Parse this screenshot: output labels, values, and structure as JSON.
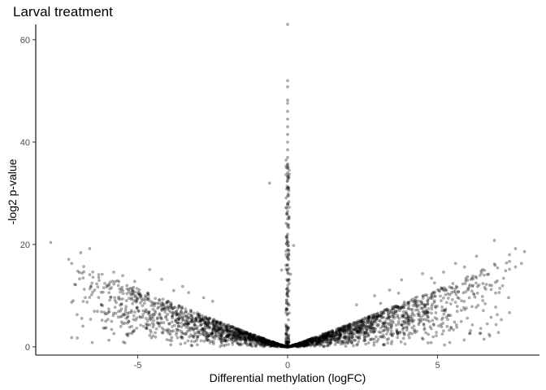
{
  "chart_data": {
    "type": "scatter",
    "title": "Larval treatment",
    "xlabel": "Differential methylation (logFC)",
    "ylabel": "-log2 p-value",
    "xlim": [
      -8.4,
      8.4
    ],
    "ylim": [
      -1.6,
      63
    ],
    "x_ticks": [
      -5,
      0,
      5
    ],
    "x_tick_labels": [
      "-5",
      "0",
      "5"
    ],
    "y_ticks": [
      0,
      20,
      40,
      60
    ],
    "y_tick_labels": [
      "0",
      "20",
      "40",
      "60"
    ],
    "grid": false,
    "legend": "none",
    "point_color": "#000000",
    "point_opacity": 0.3,
    "series": [
      {
        "points": [
          [
            0.0,
            63.0
          ],
          [
            0.0,
            52.0
          ],
          [
            0.0,
            50.8
          ],
          [
            0.0,
            48.2
          ],
          [
            0.0,
            47.6
          ],
          [
            0.0,
            46.0
          ],
          [
            0.0,
            44.5
          ],
          [
            0.0,
            43.0
          ],
          [
            0.0,
            41.5
          ],
          [
            0.0,
            40.0
          ],
          [
            0.0,
            38.5
          ],
          [
            0.0,
            37.0
          ],
          [
            0.0,
            35.5
          ],
          [
            0.0,
            34.0
          ],
          [
            0.0,
            32.5
          ],
          [
            0.0,
            31.0
          ],
          [
            0.0,
            29.5
          ],
          [
            0.0,
            28.0
          ],
          [
            0.0,
            26.5
          ],
          [
            0.0,
            25.0
          ],
          [
            0.0,
            23.5
          ],
          [
            0.0,
            22.0
          ],
          [
            0.0,
            20.5
          ],
          [
            0.0,
            19.0
          ],
          [
            0.0,
            17.5
          ],
          [
            0.0,
            16.0
          ],
          [
            0.0,
            14.5
          ],
          [
            0.0,
            13.0
          ],
          [
            0.0,
            11.5
          ],
          [
            0.0,
            10.0
          ],
          [
            -0.6,
            32.0
          ],
          [
            0.2,
            19.8
          ],
          [
            -0.2,
            15.0
          ],
          [
            0.1,
            14.2
          ],
          [
            -7.9,
            20.4
          ],
          [
            -6.6,
            19.2
          ],
          [
            -6.9,
            18.4
          ],
          [
            -7.3,
            17.1
          ],
          [
            -7.2,
            16.3
          ],
          [
            -6.8,
            15.7
          ],
          [
            -7.0,
            14.8
          ],
          [
            -6.3,
            14.1
          ],
          [
            -5.8,
            14.6
          ],
          [
            -5.5,
            13.9
          ],
          [
            -4.6,
            15.1
          ],
          [
            -5.1,
            12.8
          ],
          [
            -6.1,
            12.4
          ],
          [
            -7.1,
            12.2
          ],
          [
            -4.2,
            13.2
          ],
          [
            -3.8,
            11.0
          ],
          [
            -3.5,
            11.8
          ],
          [
            -3.3,
            10.6
          ],
          [
            -5.6,
            11.3
          ],
          [
            -4.9,
            10.1
          ],
          [
            -2.8,
            9.6
          ],
          [
            -2.5,
            8.9
          ],
          [
            -6.5,
            10.7
          ],
          [
            -5.9,
            9.7
          ],
          [
            6.9,
            20.8
          ],
          [
            7.6,
            19.2
          ],
          [
            7.9,
            18.6
          ],
          [
            7.4,
            18.0
          ],
          [
            6.3,
            17.7
          ],
          [
            7.8,
            16.3
          ],
          [
            6.9,
            16.2
          ],
          [
            7.3,
            16.4
          ],
          [
            5.6,
            16.3
          ],
          [
            5.9,
            15.6
          ],
          [
            6.5,
            15.1
          ],
          [
            7.6,
            15.6
          ],
          [
            5.2,
            14.6
          ],
          [
            4.5,
            14.3
          ],
          [
            4.8,
            13.4
          ],
          [
            3.8,
            13.1
          ],
          [
            4.9,
            12.5
          ],
          [
            6.0,
            13.7
          ],
          [
            6.7,
            14.2
          ],
          [
            7.2,
            13.4
          ],
          [
            3.4,
            11.1
          ],
          [
            2.9,
            10.0
          ],
          [
            3.7,
            10.5
          ],
          [
            5.4,
            11.7
          ],
          [
            6.2,
            10.4
          ],
          [
            6.8,
            12.0
          ],
          [
            3.1,
            8.5
          ],
          [
            2.3,
            8.2
          ],
          [
            5.8,
            9.0
          ],
          [
            4.3,
            8.4
          ]
        ]
      }
    ],
    "cloud": {
      "count": 2600,
      "x_range": [
        -7.2,
        7.4
      ],
      "max_y_slope": 2.1,
      "max_y_power": 1.05
    }
  }
}
